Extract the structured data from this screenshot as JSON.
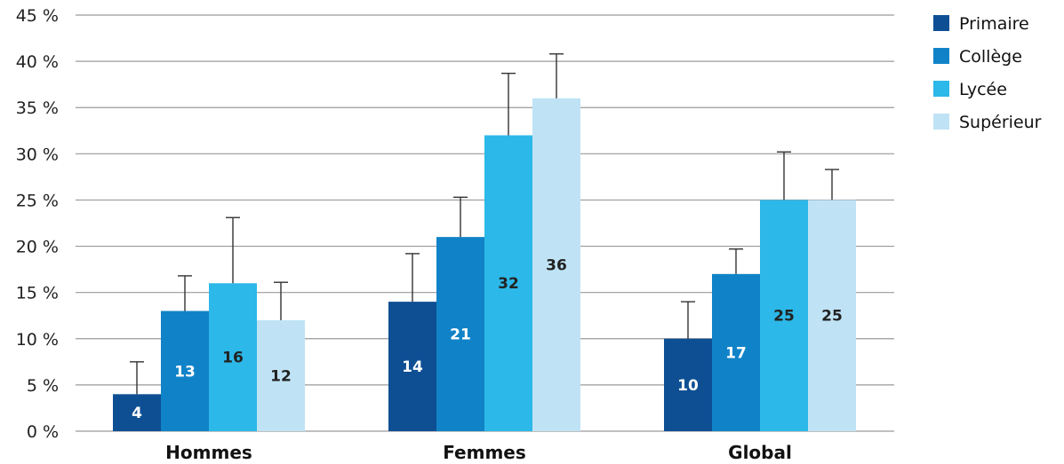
{
  "chart_data": {
    "type": "bar",
    "categories": [
      "Hommes",
      "Femmes",
      "Global"
    ],
    "series": [
      {
        "name": "Primaire",
        "color": "#0e4f94",
        "values": [
          4,
          14,
          10
        ],
        "error_upper": [
          7.5,
          19.2,
          14.0
        ]
      },
      {
        "name": "Collège",
        "color": "#1083c8",
        "values": [
          13,
          21,
          17
        ],
        "error_upper": [
          16.8,
          25.3,
          19.7
        ]
      },
      {
        "name": "Lycée",
        "color": "#2cb8e8",
        "values": [
          16,
          32,
          25
        ],
        "error_upper": [
          23.1,
          38.7,
          30.2
        ]
      },
      {
        "name": "Supérieur",
        "color": "#bfe3f5",
        "values": [
          12,
          36,
          25
        ],
        "error_upper": [
          16.1,
          40.8,
          28.3
        ]
      }
    ],
    "data_label_colors": [
      "#ffffff",
      "#ffffff",
      "#222222",
      "#222222"
    ],
    "ylim": [
      0,
      45
    ],
    "yticks": [
      0,
      5,
      10,
      15,
      20,
      25,
      30,
      35,
      40,
      45
    ],
    "ytick_labels": [
      "0 %",
      "5 %",
      "10 %",
      "15 %",
      "20 %",
      "25 %",
      "30 %",
      "35 %",
      "40 %",
      "45 %"
    ],
    "title": "",
    "xlabel": "",
    "ylabel": "",
    "grid": true,
    "legend_position": "top-right"
  }
}
